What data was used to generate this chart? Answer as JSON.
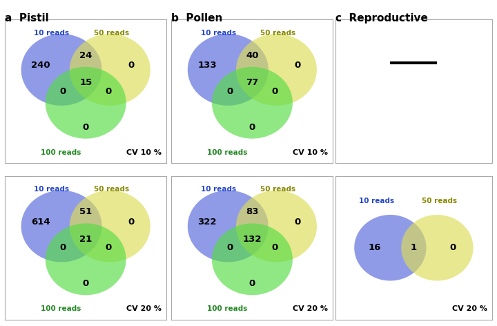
{
  "title_a": "a  Pistil",
  "title_b": "b  Pollen",
  "title_c": "c  Reproductive",
  "bg_color": "#ffffff",
  "blue_color": "#5566dd",
  "yellow_color": "#dddd55",
  "green_color": "#55dd44",
  "text_blue": "#2244cc",
  "text_yellow": "#888800",
  "text_green": "#228822",
  "circle_alpha": 0.65,
  "panels": [
    {
      "row": 0,
      "col": 0,
      "type": "three_circle",
      "labels": [
        "10 reads",
        "50 reads",
        "100 reads"
      ],
      "cv": "CV 10 %",
      "values": {
        "blue_only": "240",
        "blue_yellow": "24",
        "yellow_only": "0",
        "blue_green": "0",
        "center": "15",
        "yellow_green": "0",
        "green_only": "0"
      }
    },
    {
      "row": 0,
      "col": 1,
      "type": "three_circle",
      "labels": [
        "10 reads",
        "50 reads",
        "100 reads"
      ],
      "cv": "CV 10 %",
      "values": {
        "blue_only": "133",
        "blue_yellow": "40",
        "yellow_only": "0",
        "blue_green": "0",
        "center": "77",
        "yellow_green": "0",
        "green_only": "0"
      }
    },
    {
      "row": 0,
      "col": 2,
      "type": "dash",
      "labels": [],
      "cv": "",
      "values": {}
    },
    {
      "row": 1,
      "col": 0,
      "type": "three_circle",
      "labels": [
        "10 reads",
        "50 reads",
        "100 reads"
      ],
      "cv": "CV 20 %",
      "values": {
        "blue_only": "614",
        "blue_yellow": "51",
        "yellow_only": "0",
        "blue_green": "0",
        "center": "21",
        "yellow_green": "0",
        "green_only": "0"
      }
    },
    {
      "row": 1,
      "col": 1,
      "type": "three_circle",
      "labels": [
        "10 reads",
        "50 reads",
        "100 reads"
      ],
      "cv": "CV 20 %",
      "values": {
        "blue_only": "322",
        "blue_yellow": "83",
        "yellow_only": "0",
        "blue_green": "0",
        "center": "132",
        "yellow_green": "0",
        "green_only": "0"
      }
    },
    {
      "row": 1,
      "col": 2,
      "type": "two_circle",
      "labels": [
        "10 reads",
        "50 reads"
      ],
      "cv": "CV 20 %",
      "values": {
        "blue_only": "16",
        "overlap": "1",
        "yellow_only": "0"
      }
    }
  ]
}
